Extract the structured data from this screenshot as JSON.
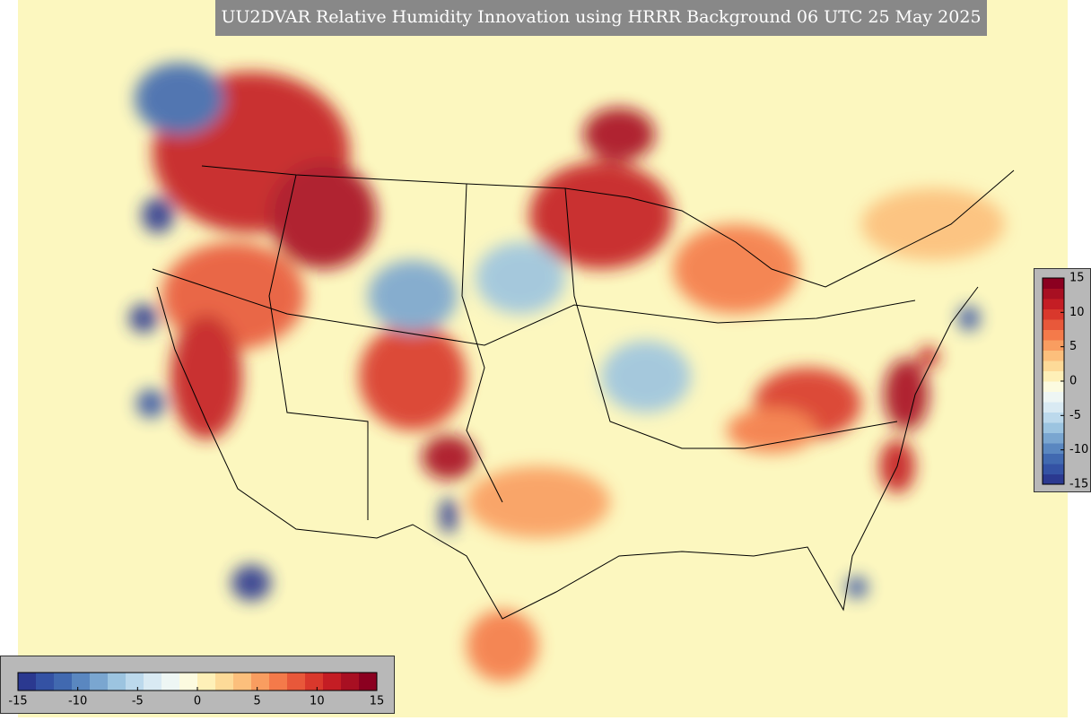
{
  "map": {
    "title": "UU2DVAR Relative Humidity Innovation using HRRR Background 06 UTC 25 May 2025",
    "colorbar": {
      "range": [
        -15,
        15
      ],
      "ticks": [
        -15,
        -10,
        -5,
        0,
        5,
        10,
        15
      ],
      "colors": [
        "#2b3990",
        "#3452a4",
        "#4169b0",
        "#5a87c0",
        "#7aa6d0",
        "#9cc4e0",
        "#bcd9ec",
        "#d9eaf3",
        "#eef6f4",
        "#fcfbe0",
        "#fef0b8",
        "#fdda98",
        "#fcbf7c",
        "#f99d60",
        "#f47a4a",
        "#e8583a",
        "#d9382c",
        "#c41d24",
        "#a80f22",
        "#8b0020"
      ]
    }
  }
}
